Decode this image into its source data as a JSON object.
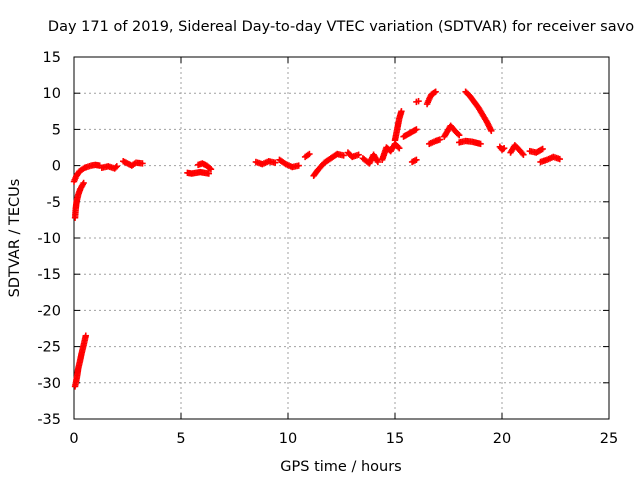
{
  "chart_data": {
    "type": "scatter",
    "title": "Day 171 of 2019, Sidereal Day-to-day VTEC variation (SDTVAR) for receiver savo",
    "xlabel": "GPS time / hours",
    "ylabel": "SDTVAR / TECUs",
    "xlim": [
      0,
      25
    ],
    "ylim": [
      -35,
      15
    ],
    "xticks": [
      "0",
      "5",
      "10",
      "15",
      "20",
      "25"
    ],
    "yticks": [
      "-35",
      "-30",
      "-25",
      "-20",
      "-15",
      "-10",
      "-5",
      "0",
      "5",
      "10",
      "15"
    ],
    "grid": true,
    "marker": "+",
    "color": "#ff0000",
    "series": [
      {
        "name": "SDTVAR",
        "segments": [
          {
            "x": [
              0.0,
              0.1,
              0.25,
              0.5,
              0.8,
              1.0,
              1.2
            ],
            "y": [
              -2.2,
              -1.5,
              -0.8,
              -0.3,
              0.0,
              0.1,
              0.0
            ]
          },
          {
            "x": [
              0.05,
              0.08,
              0.12,
              0.2,
              0.3,
              0.45
            ],
            "y": [
              -7.2,
              -6.0,
              -5.0,
              -4.0,
              -3.2,
              -2.4
            ]
          },
          {
            "x": [
              0.05,
              0.1,
              0.15,
              0.2,
              0.28,
              0.35,
              0.45,
              0.55
            ],
            "y": [
              -30.5,
              -29.8,
              -29.0,
              -28.0,
              -27.0,
              -26.0,
              -24.8,
              -23.5
            ]
          },
          {
            "x": [
              1.3,
              1.6,
              1.9,
              2.0
            ],
            "y": [
              -0.3,
              -0.1,
              -0.4,
              -0.1
            ]
          },
          {
            "x": [
              2.3,
              2.5,
              2.7,
              2.9,
              3.2
            ],
            "y": [
              0.6,
              0.3,
              0.0,
              0.4,
              0.3
            ]
          },
          {
            "x": [
              5.3,
              5.5,
              5.7,
              5.9,
              6.1,
              6.3
            ],
            "y": [
              -1.0,
              -1.1,
              -1.0,
              -0.9,
              -1.0,
              -1.1
            ]
          },
          {
            "x": [
              5.8,
              6.0,
              6.2,
              6.4
            ],
            "y": [
              0.1,
              0.3,
              0.0,
              -0.5
            ]
          },
          {
            "x": [
              8.5,
              8.8,
              9.1,
              9.4
            ],
            "y": [
              0.5,
              0.2,
              0.6,
              0.4
            ]
          },
          {
            "x": [
              9.6,
              9.9,
              10.2,
              10.5
            ],
            "y": [
              0.8,
              0.2,
              -0.2,
              0.0
            ]
          },
          {
            "x": [
              10.8,
              11.0
            ],
            "y": [
              1.2,
              1.6
            ]
          },
          {
            "x": [
              11.2,
              11.4,
              11.7,
              12.0,
              12.3,
              12.6
            ],
            "y": [
              -1.4,
              -0.6,
              0.4,
              1.0,
              1.6,
              1.4
            ]
          },
          {
            "x": [
              12.8,
              13.0,
              13.3
            ],
            "y": [
              1.8,
              1.2,
              1.5
            ]
          },
          {
            "x": [
              13.5,
              13.8,
              14.0,
              14.2
            ],
            "y": [
              1.0,
              0.3,
              1.5,
              0.5
            ]
          },
          {
            "x": [
              14.4,
              14.6,
              14.8,
              15.0,
              15.2
            ],
            "y": [
              0.8,
              2.5,
              2.0,
              3.0,
              2.4
            ]
          },
          {
            "x": [
              15.0,
              15.1,
              15.2,
              15.3
            ],
            "y": [
              3.5,
              5.0,
              6.5,
              7.5
            ]
          },
          {
            "x": [
              15.4,
              15.7,
              16.0
            ],
            "y": [
              4.0,
              4.5,
              5.0
            ]
          },
          {
            "x": [
              15.8,
              16.0
            ],
            "y": [
              0.5,
              0.8
            ]
          },
          {
            "x": [
              16.0,
              16.1
            ],
            "y": [
              8.8,
              8.9
            ]
          },
          {
            "x": [
              16.5,
              16.6,
              16.7,
              16.8,
              16.9
            ],
            "y": [
              8.5,
              9.2,
              9.8,
              10.0,
              10.2
            ]
          },
          {
            "x": [
              16.6,
              16.9,
              17.1
            ],
            "y": [
              3.0,
              3.4,
              3.6
            ]
          },
          {
            "x": [
              17.3,
              17.6,
              17.8,
              18.0
            ],
            "y": [
              4.0,
              5.5,
              4.8,
              4.2
            ]
          },
          {
            "x": [
              18.0,
              18.3,
              18.6,
              19.0
            ],
            "y": [
              3.2,
              3.4,
              3.3,
              3.0
            ]
          },
          {
            "x": [
              18.3,
              18.5,
              18.7,
              18.9,
              19.1,
              19.3,
              19.5
            ],
            "y": [
              10.2,
              9.6,
              8.8,
              8.0,
              7.0,
              6.0,
              4.8
            ]
          },
          {
            "x": [
              19.9,
              20.0,
              20.1
            ],
            "y": [
              2.6,
              2.2,
              2.4
            ]
          },
          {
            "x": [
              20.4,
              20.6,
              20.8,
              21.0
            ],
            "y": [
              1.8,
              2.8,
              2.2,
              1.5
            ]
          },
          {
            "x": [
              21.3,
              21.6,
              21.9
            ],
            "y": [
              2.0,
              1.8,
              2.3
            ]
          },
          {
            "x": [
              21.8,
              22.1,
              22.4,
              22.7
            ],
            "y": [
              0.5,
              0.8,
              1.2,
              0.9
            ]
          }
        ]
      }
    ]
  }
}
